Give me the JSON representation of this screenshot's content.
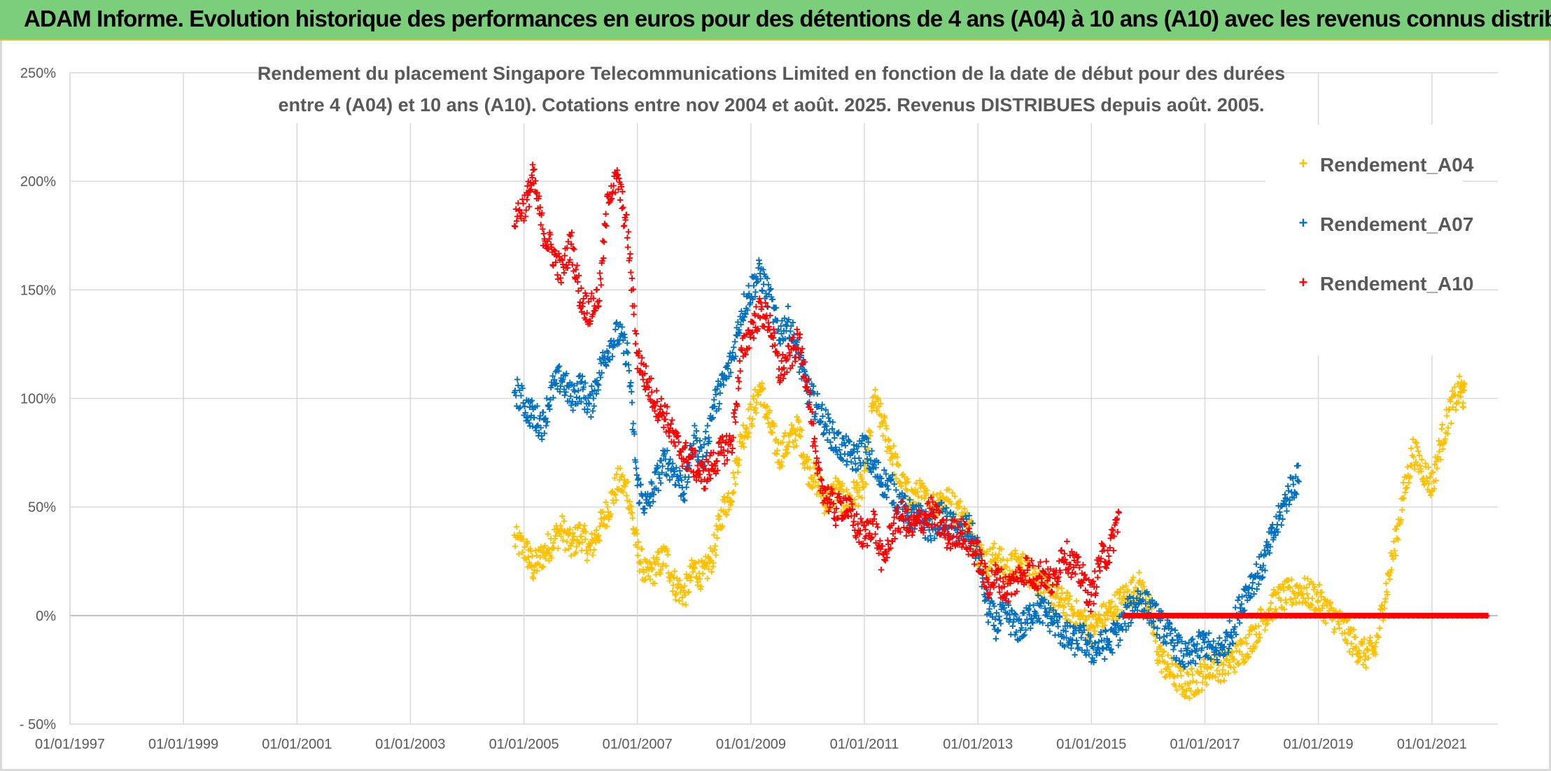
{
  "banner": {
    "title": "ADAM Informe. Evolution historique des performances en euros pour des détentions de 4 ans (A04) à 10 ans (A10) avec les revenus connus distribués"
  },
  "chart_data": {
    "type": "scatter",
    "title_line1": "Rendement du placement Singapore Telecommunications Limited en fonction de la date de début pour des durées",
    "title_line2": "entre 4 (A04) et 10 ans (A10). Cotations entre nov 2004 et août. 2025. Revenus DISTRIBUES depuis août. 2005.",
    "xlabel": "",
    "ylabel": "",
    "xlim": [
      "1997-01-01",
      "2022-03-01"
    ],
    "ylim": [
      -50,
      250
    ],
    "xticks": [
      "01/01/1997",
      "01/01/1999",
      "01/01/2001",
      "01/01/2003",
      "01/01/2005",
      "01/01/2007",
      "01/01/2009",
      "01/01/2011",
      "01/01/2013",
      "01/01/2015",
      "01/01/2017",
      "01/01/2019",
      "01/01/2021"
    ],
    "yticks": [
      "250%",
      "200%",
      "150%",
      "100%",
      "50%",
      "0%",
      "- 50%"
    ],
    "ytick_values": [
      250,
      200,
      150,
      100,
      50,
      0,
      -50
    ],
    "grid": true,
    "legend_position": "top-right",
    "marker": "+",
    "series": [
      {
        "name": "Rendement_A04",
        "color": "#ffc000",
        "points": [
          [
            "2004-11-01",
            35
          ],
          [
            "2005-01-15",
            30
          ],
          [
            "2005-03-01",
            22
          ],
          [
            "2005-05-01",
            28
          ],
          [
            "2005-07-01",
            34
          ],
          [
            "2005-09-01",
            40
          ],
          [
            "2005-11-01",
            32
          ],
          [
            "2006-01-01",
            38
          ],
          [
            "2006-03-01",
            30
          ],
          [
            "2006-05-01",
            40
          ],
          [
            "2006-07-01",
            50
          ],
          [
            "2006-09-01",
            62
          ],
          [
            "2006-11-01",
            58
          ],
          [
            "2007-01-01",
            30
          ],
          [
            "2007-03-01",
            18
          ],
          [
            "2007-05-01",
            22
          ],
          [
            "2007-07-01",
            28
          ],
          [
            "2007-09-01",
            14
          ],
          [
            "2007-11-01",
            10
          ],
          [
            "2008-01-01",
            22
          ],
          [
            "2008-03-01",
            18
          ],
          [
            "2008-05-01",
            28
          ],
          [
            "2008-07-01",
            48
          ],
          [
            "2008-09-01",
            58
          ],
          [
            "2008-11-01",
            82
          ],
          [
            "2009-01-01",
            92
          ],
          [
            "2009-03-01",
            105
          ],
          [
            "2009-05-01",
            88
          ],
          [
            "2009-07-01",
            74
          ],
          [
            "2009-09-01",
            80
          ],
          [
            "2009-11-01",
            86
          ],
          [
            "2010-01-01",
            68
          ],
          [
            "2010-03-01",
            62
          ],
          [
            "2010-05-01",
            52
          ],
          [
            "2010-07-01",
            58
          ],
          [
            "2010-09-01",
            52
          ],
          [
            "2010-11-01",
            56
          ],
          [
            "2011-01-01",
            60
          ],
          [
            "2011-03-01",
            100
          ],
          [
            "2011-05-01",
            88
          ],
          [
            "2011-07-01",
            74
          ],
          [
            "2011-09-01",
            60
          ],
          [
            "2011-11-01",
            54
          ],
          [
            "2012-01-01",
            56
          ],
          [
            "2012-03-01",
            50
          ],
          [
            "2012-05-01",
            54
          ],
          [
            "2012-07-01",
            52
          ],
          [
            "2012-09-01",
            48
          ],
          [
            "2012-11-01",
            42
          ],
          [
            "2013-01-01",
            30
          ],
          [
            "2013-03-01",
            24
          ],
          [
            "2013-05-01",
            28
          ],
          [
            "2013-07-01",
            20
          ],
          [
            "2013-09-01",
            24
          ],
          [
            "2013-11-01",
            22
          ],
          [
            "2014-01-01",
            18
          ],
          [
            "2014-03-01",
            12
          ],
          [
            "2014-05-01",
            8
          ],
          [
            "2014-07-01",
            6
          ],
          [
            "2014-09-01",
            2
          ],
          [
            "2014-11-01",
            -2
          ],
          [
            "2015-01-01",
            -6
          ],
          [
            "2015-03-01",
            -2
          ],
          [
            "2015-05-01",
            2
          ],
          [
            "2015-07-01",
            6
          ],
          [
            "2015-09-01",
            10
          ],
          [
            "2015-11-01",
            14
          ],
          [
            "2016-01-01",
            6
          ],
          [
            "2016-03-01",
            -16
          ],
          [
            "2016-05-01",
            -24
          ],
          [
            "2016-07-01",
            -28
          ],
          [
            "2016-09-01",
            -32
          ],
          [
            "2016-11-01",
            -30
          ],
          [
            "2017-01-01",
            -26
          ],
          [
            "2017-03-01",
            -22
          ],
          [
            "2017-05-01",
            -24
          ],
          [
            "2017-07-01",
            -20
          ],
          [
            "2017-09-01",
            -16
          ],
          [
            "2017-11-01",
            -10
          ],
          [
            "2018-01-01",
            -2
          ],
          [
            "2018-03-01",
            4
          ],
          [
            "2018-05-01",
            8
          ],
          [
            "2018-07-01",
            10
          ],
          [
            "2018-09-01",
            12
          ],
          [
            "2018-11-01",
            10
          ],
          [
            "2019-01-01",
            8
          ],
          [
            "2019-03-01",
            2
          ],
          [
            "2019-05-01",
            -2
          ],
          [
            "2019-07-01",
            -8
          ],
          [
            "2019-09-01",
            -14
          ],
          [
            "2019-11-01",
            -18
          ],
          [
            "2020-01-01",
            -16
          ],
          [
            "2020-03-01",
            8
          ],
          [
            "2020-05-01",
            30
          ],
          [
            "2020-07-01",
            55
          ],
          [
            "2020-09-01",
            76
          ],
          [
            "2020-11-01",
            68
          ],
          [
            "2021-01-01",
            60
          ],
          [
            "2021-03-01",
            80
          ],
          [
            "2021-05-01",
            95
          ],
          [
            "2021-07-01",
            104
          ],
          [
            "2021-08-01",
            100
          ]
        ]
      },
      {
        "name": "Rendement_A07",
        "color": "#0070c0",
        "points": [
          [
            "2004-11-01",
            105
          ],
          [
            "2005-01-15",
            96
          ],
          [
            "2005-03-01",
            92
          ],
          [
            "2005-05-01",
            88
          ],
          [
            "2005-07-01",
            104
          ],
          [
            "2005-09-01",
            110
          ],
          [
            "2005-11-01",
            100
          ],
          [
            "2006-01-01",
            106
          ],
          [
            "2006-03-01",
            96
          ],
          [
            "2006-05-01",
            112
          ],
          [
            "2006-07-01",
            124
          ],
          [
            "2006-09-01",
            130
          ],
          [
            "2006-11-01",
            120
          ],
          [
            "2007-01-01",
            60
          ],
          [
            "2007-03-01",
            50
          ],
          [
            "2007-05-01",
            62
          ],
          [
            "2007-07-01",
            72
          ],
          [
            "2007-09-01",
            66
          ],
          [
            "2007-11-01",
            58
          ],
          [
            "2008-01-01",
            82
          ],
          [
            "2008-03-01",
            72
          ],
          [
            "2008-05-01",
            96
          ],
          [
            "2008-07-01",
            106
          ],
          [
            "2008-09-01",
            118
          ],
          [
            "2008-11-01",
            140
          ],
          [
            "2009-01-01",
            150
          ],
          [
            "2009-03-01",
            158
          ],
          [
            "2009-05-01",
            146
          ],
          [
            "2009-07-01",
            130
          ],
          [
            "2009-09-01",
            136
          ],
          [
            "2009-11-01",
            120
          ],
          [
            "2010-01-01",
            104
          ],
          [
            "2010-03-01",
            96
          ],
          [
            "2010-05-01",
            88
          ],
          [
            "2010-07-01",
            80
          ],
          [
            "2010-09-01",
            76
          ],
          [
            "2010-11-01",
            72
          ],
          [
            "2011-01-01",
            78
          ],
          [
            "2011-03-01",
            68
          ],
          [
            "2011-05-01",
            62
          ],
          [
            "2011-07-01",
            58
          ],
          [
            "2011-09-01",
            50
          ],
          [
            "2011-11-01",
            46
          ],
          [
            "2012-01-01",
            44
          ],
          [
            "2012-03-01",
            40
          ],
          [
            "2012-05-01",
            46
          ],
          [
            "2012-07-01",
            42
          ],
          [
            "2012-09-01",
            38
          ],
          [
            "2012-11-01",
            40
          ],
          [
            "2013-01-01",
            30
          ],
          [
            "2013-03-01",
            4
          ],
          [
            "2013-05-01",
            -4
          ],
          [
            "2013-07-01",
            2
          ],
          [
            "2013-09-01",
            -6
          ],
          [
            "2013-11-01",
            -4
          ],
          [
            "2014-01-01",
            4
          ],
          [
            "2014-03-01",
            2
          ],
          [
            "2014-05-01",
            -2
          ],
          [
            "2014-07-01",
            -8
          ],
          [
            "2014-09-01",
            -12
          ],
          [
            "2014-11-01",
            -10
          ],
          [
            "2015-01-01",
            -16
          ],
          [
            "2015-03-01",
            -14
          ],
          [
            "2015-05-01",
            -12
          ],
          [
            "2015-07-01",
            -6
          ],
          [
            "2015-09-01",
            2
          ],
          [
            "2015-11-01",
            8
          ],
          [
            "2016-01-01",
            4
          ],
          [
            "2016-03-01",
            -2
          ],
          [
            "2016-05-01",
            -8
          ],
          [
            "2016-07-01",
            -14
          ],
          [
            "2016-09-01",
            -20
          ],
          [
            "2016-11-01",
            -16
          ],
          [
            "2017-01-01",
            -12
          ],
          [
            "2017-03-01",
            -18
          ],
          [
            "2017-05-01",
            -14
          ],
          [
            "2017-07-01",
            -6
          ],
          [
            "2017-09-01",
            8
          ],
          [
            "2017-11-01",
            16
          ],
          [
            "2018-01-01",
            22
          ],
          [
            "2018-03-01",
            34
          ],
          [
            "2018-05-01",
            46
          ],
          [
            "2018-07-01",
            58
          ],
          [
            "2018-09-01",
            64
          ]
        ]
      },
      {
        "name": "Rendement_A10",
        "color": "#ff0000",
        "points": [
          [
            "2004-11-01",
            184
          ],
          [
            "2005-01-15",
            190
          ],
          [
            "2005-03-01",
            202
          ],
          [
            "2005-05-01",
            178
          ],
          [
            "2005-07-01",
            168
          ],
          [
            "2005-09-01",
            158
          ],
          [
            "2005-11-01",
            172
          ],
          [
            "2006-01-01",
            146
          ],
          [
            "2006-03-01",
            140
          ],
          [
            "2006-05-01",
            148
          ],
          [
            "2006-07-01",
            196
          ],
          [
            "2006-09-01",
            200
          ],
          [
            "2006-11-01",
            175
          ],
          [
            "2007-01-01",
            120
          ],
          [
            "2007-03-01",
            108
          ],
          [
            "2007-05-01",
            98
          ],
          [
            "2007-07-01",
            92
          ],
          [
            "2007-09-01",
            80
          ],
          [
            "2007-11-01",
            74
          ],
          [
            "2008-01-01",
            70
          ],
          [
            "2008-03-01",
            64
          ],
          [
            "2008-05-01",
            70
          ],
          [
            "2008-07-01",
            76
          ],
          [
            "2008-09-01",
            80
          ],
          [
            "2008-11-01",
            120
          ],
          [
            "2009-01-01",
            132
          ],
          [
            "2009-03-01",
            140
          ],
          [
            "2009-05-01",
            136
          ],
          [
            "2009-07-01",
            112
          ],
          [
            "2009-09-01",
            118
          ],
          [
            "2009-11-01",
            126
          ],
          [
            "2010-01-01",
            108
          ],
          [
            "2010-03-01",
            66
          ],
          [
            "2010-05-01",
            56
          ],
          [
            "2010-07-01",
            48
          ],
          [
            "2010-09-01",
            52
          ],
          [
            "2010-11-01",
            42
          ],
          [
            "2011-01-01",
            36
          ],
          [
            "2011-03-01",
            44
          ],
          [
            "2011-05-01",
            24
          ],
          [
            "2011-07-01",
            40
          ],
          [
            "2011-09-01",
            46
          ],
          [
            "2011-11-01",
            40
          ],
          [
            "2012-01-01",
            44
          ],
          [
            "2012-03-01",
            48
          ],
          [
            "2012-05-01",
            42
          ],
          [
            "2012-07-01",
            36
          ],
          [
            "2012-09-01",
            40
          ],
          [
            "2012-11-01",
            34
          ],
          [
            "2013-01-01",
            28
          ],
          [
            "2013-03-01",
            14
          ],
          [
            "2013-05-01",
            18
          ],
          [
            "2013-07-01",
            12
          ],
          [
            "2013-09-01",
            16
          ],
          [
            "2013-11-01",
            22
          ],
          [
            "2014-01-01",
            18
          ],
          [
            "2014-03-01",
            20
          ],
          [
            "2014-05-01",
            14
          ],
          [
            "2014-07-01",
            30
          ],
          [
            "2014-09-01",
            24
          ],
          [
            "2014-11-01",
            18
          ],
          [
            "2015-01-01",
            8
          ],
          [
            "2015-03-01",
            26
          ],
          [
            "2015-05-01",
            30
          ],
          [
            "2015-07-01",
            48
          ],
          [
            "2015-08-01",
            0
          ],
          [
            "2021-12-31",
            0
          ]
        ],
        "flat_segment": {
          "from": "2015-08-01",
          "to": "2021-12-31",
          "value": 0
        }
      }
    ],
    "legend": [
      "Rendement_A04",
      "Rendement_A07",
      "Rendement_A10"
    ]
  }
}
